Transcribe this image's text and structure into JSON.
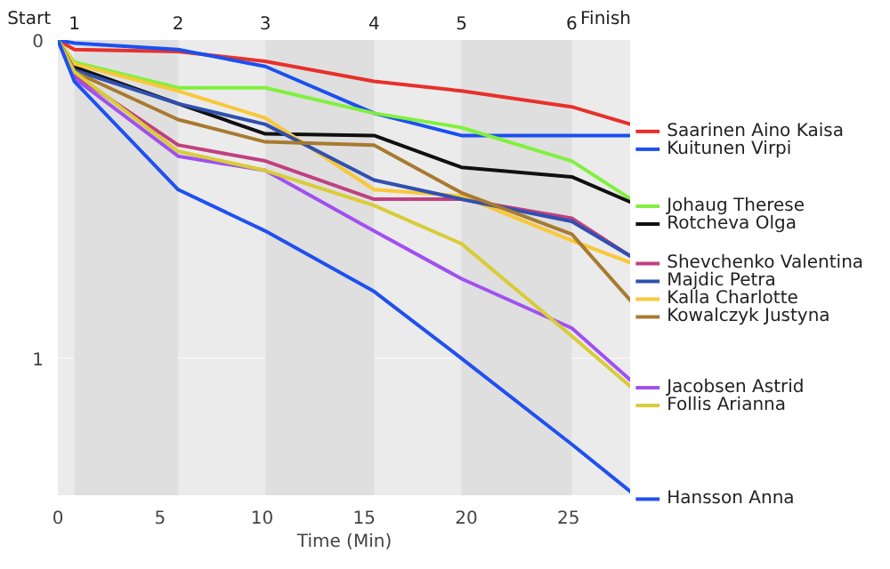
{
  "chart_data": {
    "type": "line",
    "xlabel": "Time (Min)",
    "x": [
      0,
      0.81,
      5.89,
      10.16,
      15.48,
      19.76,
      25.16,
      28.06
    ],
    "xlim": [
      0,
      28.06
    ],
    "xticks": [
      0,
      5,
      10,
      15,
      20,
      25
    ],
    "annotations": [
      "Start",
      "1",
      "2",
      "3",
      "4",
      "5",
      "6",
      "Finish"
    ],
    "ylim": [
      1.43,
      0
    ],
    "yticks": [
      0,
      1
    ],
    "grid": "y",
    "legend": "right",
    "bands": [
      {
        "axis": "x",
        "from": 0.81,
        "to": 5.89,
        "color": "#dfdfdf"
      },
      {
        "axis": "x",
        "from": 10.16,
        "to": 15.48,
        "color": "#dfdfdf"
      },
      {
        "axis": "x",
        "from": 19.76,
        "to": 25.16,
        "color": "#dfdfdf"
      }
    ],
    "series": [
      {
        "name": "Saarinen Aino Kaisa",
        "color": "#e8302a",
        "values": [
          0,
          0.03,
          0.036,
          0.067,
          0.13,
          0.16,
          0.21,
          0.265
        ]
      },
      {
        "name": "Kuitunen Virpi",
        "color": "#1a50f0",
        "values": [
          0,
          0.01,
          0.03,
          0.083,
          0.23,
          0.3,
          0.3,
          0.3
        ]
      },
      {
        "name": "Johaug Therese",
        "color": "#80f040",
        "values": [
          0,
          0.07,
          0.15,
          0.15,
          0.23,
          0.275,
          0.38,
          0.5
        ]
      },
      {
        "name": "Rotcheva Olga",
        "color": "#101010",
        "values": [
          0,
          0.085,
          0.2,
          0.295,
          0.3,
          0.4,
          0.43,
          0.51
        ]
      },
      {
        "name": "Shevchenko Valentina",
        "color": "#c04080",
        "values": [
          0,
          0.11,
          0.33,
          0.38,
          0.5,
          0.5,
          0.56,
          0.68
        ]
      },
      {
        "name": "Kalla Charlotte",
        "color": "#f8c838",
        "values": [
          0,
          0.075,
          0.16,
          0.245,
          0.47,
          0.49,
          0.63,
          0.7
        ]
      },
      {
        "name": "Majdic Petra",
        "color": "#3050b0",
        "values": [
          0,
          0.095,
          0.2,
          0.265,
          0.44,
          0.5,
          0.57,
          0.68
        ]
      },
      {
        "name": "Kowalczyk Justyna",
        "color": "#a87a30",
        "values": [
          0,
          0.1,
          0.25,
          0.32,
          0.33,
          0.48,
          0.61,
          0.82
        ]
      },
      {
        "name": "Jacobsen Astrid",
        "color": "#a050f0",
        "values": [
          0,
          0.12,
          0.365,
          0.41,
          0.6,
          0.75,
          0.905,
          1.07
        ]
      },
      {
        "name": "Follis Arianna",
        "color": "#d8cc38",
        "values": [
          0,
          0.1,
          0.35,
          0.41,
          0.52,
          0.64,
          0.93,
          1.09
        ]
      },
      {
        "name": "Hansson Anna",
        "color": "#2050f0",
        "values": [
          0,
          0.13,
          0.47,
          0.6,
          0.79,
          1.0,
          1.27,
          1.42
        ]
      }
    ]
  }
}
